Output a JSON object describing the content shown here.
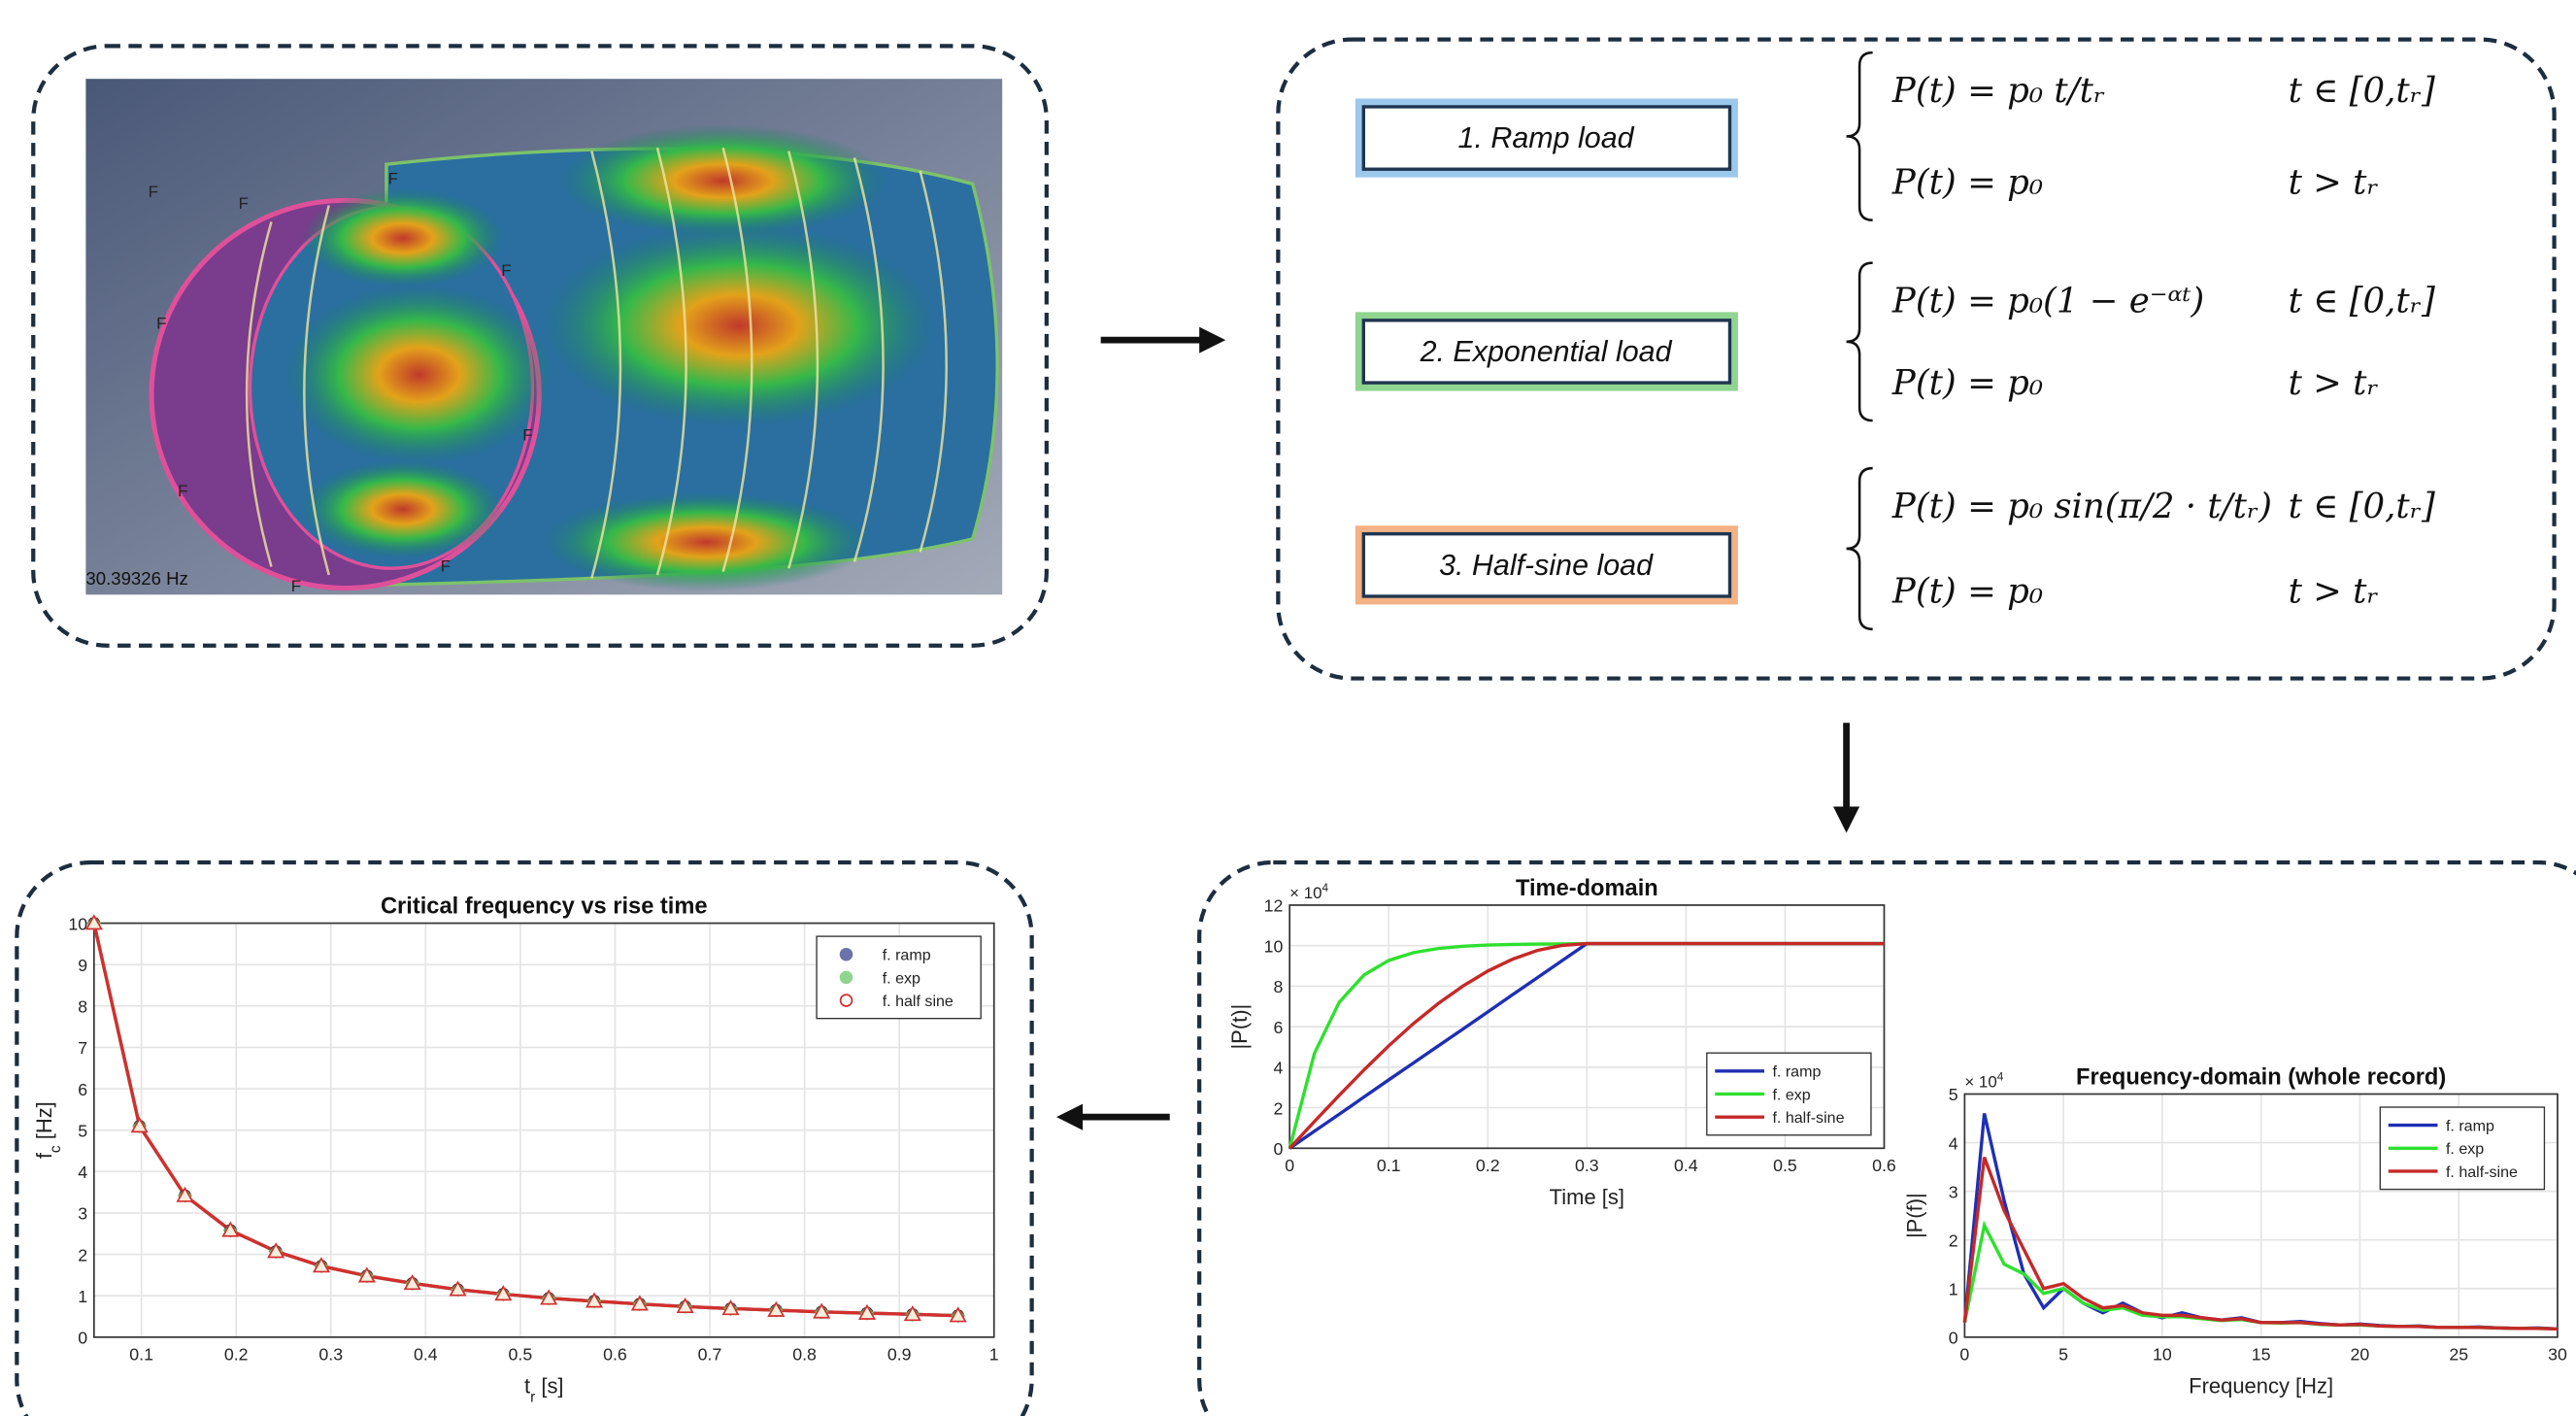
{
  "fe_model": {
    "frequency_label": "30.39326 Hz",
    "markers": [
      "F",
      "F",
      "F",
      "F",
      "F",
      "F",
      "F",
      "F",
      "F"
    ]
  },
  "load_cases": [
    {
      "label": "1. Ramp load",
      "equations": [
        {
          "expr": "P(t) = p₀ t/tᵣ",
          "condition": "t ∈ [0,tᵣ]"
        },
        {
          "expr": "P(t) = p₀",
          "condition": "t > tᵣ"
        }
      ]
    },
    {
      "label": "2. Exponential load",
      "equations": [
        {
          "expr": "P(t) = p₀(1 − e⁻ᵅᵗ)",
          "condition": "t ∈ [0,tᵣ]"
        },
        {
          "expr": "P(t) = p₀",
          "condition": "t > tᵣ"
        }
      ]
    },
    {
      "label": "3. Half-sine load",
      "equations": [
        {
          "expr": "P(t) = p₀ sin(π/2 · t/tᵣ)",
          "condition": "t ∈ [0,tᵣ]"
        },
        {
          "expr": "P(t) = p₀",
          "condition": "t > tᵣ"
        }
      ]
    }
  ],
  "time_domain": {
    "type": "line",
    "title": "Time-domain",
    "xlabel": [
      "Time [s]"
    ],
    "ylabel": [
      "|P(t)|"
    ],
    "exponent": [
      "× 10",
      "4"
    ],
    "xlim": [
      0,
      0.6
    ],
    "ylim": [
      0,
      12
    ],
    "xticks": [
      0,
      0.1,
      0.2,
      0.3,
      0.4,
      0.5,
      0.6
    ],
    "yticks": [
      0,
      2,
      4,
      6,
      8,
      10,
      12
    ],
    "grid": true,
    "legend": "lower right",
    "x": [
      0,
      0.025,
      0.05,
      0.075,
      0.1,
      0.125,
      0.15,
      0.175,
      0.2,
      0.225,
      0.25,
      0.275,
      0.3,
      0.325,
      0.35,
      0.375,
      0.4,
      0.425,
      0.45,
      0.475,
      0.5,
      0.525,
      0.55,
      0.575,
      0.6
    ],
    "series": [
      {
        "name": "f. ramp",
        "color": "#1f2fb4",
        "values": [
          0,
          0.84,
          1.68,
          2.53,
          3.37,
          4.21,
          5.05,
          5.89,
          6.73,
          7.58,
          8.42,
          9.26,
          10.1,
          10.1,
          10.1,
          10.1,
          10.1,
          10.1,
          10.1,
          10.1,
          10.1,
          10.1,
          10.1,
          10.1,
          10.1
        ]
      },
      {
        "name": "f. exp",
        "color": "#2ee02e",
        "values": [
          0,
          4.69,
          7.21,
          8.55,
          9.27,
          9.66,
          9.86,
          9.97,
          10.03,
          10.06,
          10.08,
          10.09,
          10.1,
          10.1,
          10.1,
          10.1,
          10.1,
          10.1,
          10.1,
          10.1,
          10.1,
          10.1,
          10.1,
          10.1,
          10.1
        ]
      },
      {
        "name": "f. half-sine",
        "color": "#c62828",
        "values": [
          0,
          1.32,
          2.61,
          3.87,
          5.05,
          6.15,
          7.14,
          8.01,
          8.75,
          9.33,
          9.76,
          10.01,
          10.1,
          10.1,
          10.1,
          10.1,
          10.1,
          10.1,
          10.1,
          10.1,
          10.1,
          10.1,
          10.1,
          10.1,
          10.1
        ]
      }
    ]
  },
  "frequency_domain": {
    "type": "line",
    "title": "Frequency-domain (whole record)",
    "xlabel": [
      "Frequency [Hz]"
    ],
    "ylabel": [
      "|P(f)|"
    ],
    "exponent": [
      "× 10",
      "4"
    ],
    "xlim": [
      0,
      30
    ],
    "ylim": [
      0,
      5
    ],
    "xticks": [
      0,
      5,
      10,
      15,
      20,
      25,
      30
    ],
    "yticks": [
      0,
      1,
      2,
      3,
      4,
      5
    ],
    "grid": true,
    "legend": "upper right",
    "x": [
      0,
      1,
      2,
      3,
      4,
      5,
      6,
      7,
      8,
      9,
      10,
      11,
      12,
      13,
      14,
      15,
      16,
      17,
      18,
      19,
      20,
      21,
      22,
      23,
      24,
      25,
      26,
      27,
      28,
      29,
      30
    ],
    "series": [
      {
        "name": "f. ramp",
        "color": "#1f2fb4",
        "values": [
          0.3,
          4.6,
          2.8,
          1.3,
          0.6,
          1.0,
          0.7,
          0.5,
          0.7,
          0.5,
          0.4,
          0.5,
          0.4,
          0.35,
          0.4,
          0.3,
          0.3,
          0.32,
          0.28,
          0.25,
          0.27,
          0.24,
          0.22,
          0.23,
          0.2,
          0.2,
          0.21,
          0.19,
          0.18,
          0.19,
          0.17
        ]
      },
      {
        "name": "f. exp",
        "color": "#2ee02e",
        "values": [
          0.3,
          2.3,
          1.5,
          1.3,
          0.9,
          1.0,
          0.7,
          0.55,
          0.6,
          0.45,
          0.42,
          0.42,
          0.38,
          0.34,
          0.36,
          0.3,
          0.29,
          0.3,
          0.26,
          0.25,
          0.25,
          0.23,
          0.22,
          0.22,
          0.2,
          0.2,
          0.2,
          0.19,
          0.18,
          0.18,
          0.17
        ]
      },
      {
        "name": "f. half-sine",
        "color": "#c62828",
        "values": [
          0.3,
          3.7,
          2.6,
          1.8,
          1.0,
          1.1,
          0.8,
          0.6,
          0.65,
          0.5,
          0.45,
          0.45,
          0.4,
          0.35,
          0.38,
          0.3,
          0.3,
          0.3,
          0.27,
          0.25,
          0.26,
          0.23,
          0.22,
          0.22,
          0.2,
          0.2,
          0.2,
          0.19,
          0.18,
          0.18,
          0.17
        ]
      }
    ]
  },
  "critical_frequency": {
    "type": "line",
    "title": "Critical frequency vs rise time",
    "xlabel": [
      "t",
      "r",
      " [s]"
    ],
    "ylabel": [
      "f",
      "c",
      " [Hz]"
    ],
    "xlim": [
      0.05,
      1
    ],
    "ylim": [
      0,
      10
    ],
    "xticks": [
      0.1,
      0.2,
      0.3,
      0.4,
      0.5,
      0.6,
      0.7,
      0.8,
      0.9,
      1
    ],
    "yticks": [
      0,
      1,
      2,
      3,
      4,
      5,
      6,
      7,
      8,
      9,
      10
    ],
    "grid": true,
    "legend": "upper right",
    "x": [
      0.05,
      0.098,
      0.146,
      0.194,
      0.242,
      0.29,
      0.338,
      0.386,
      0.434,
      0.482,
      0.53,
      0.578,
      0.626,
      0.674,
      0.722,
      0.77,
      0.818,
      0.866,
      0.914,
      0.962
    ],
    "series": [
      {
        "name": "f. ramp",
        "color": "#6b74a8",
        "marker": "circle",
        "values": [
          10,
          5.1,
          3.42,
          2.58,
          2.07,
          1.72,
          1.48,
          1.3,
          1.15,
          1.04,
          0.94,
          0.87,
          0.8,
          0.74,
          0.69,
          0.65,
          0.61,
          0.58,
          0.55,
          0.52
        ]
      },
      {
        "name": "f. exp",
        "color": "#8fd48f",
        "marker": "diamond",
        "values": [
          10,
          5.1,
          3.42,
          2.58,
          2.07,
          1.72,
          1.48,
          1.3,
          1.15,
          1.04,
          0.94,
          0.87,
          0.8,
          0.74,
          0.69,
          0.65,
          0.61,
          0.58,
          0.55,
          0.52
        ]
      },
      {
        "name": "f. half sine",
        "color": "#d32f2f",
        "marker": "triangle",
        "values": [
          10,
          5.1,
          3.42,
          2.58,
          2.07,
          1.72,
          1.48,
          1.3,
          1.15,
          1.04,
          0.94,
          0.87,
          0.8,
          0.74,
          0.69,
          0.65,
          0.61,
          0.58,
          0.55,
          0.52
        ]
      }
    ]
  }
}
